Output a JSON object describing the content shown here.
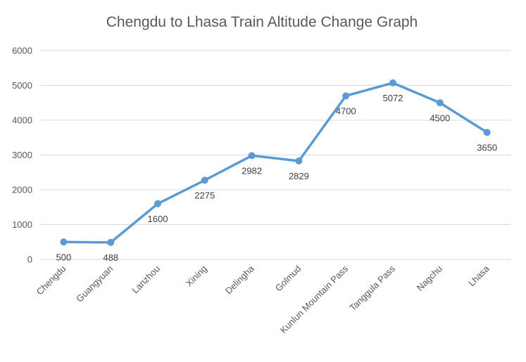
{
  "chart_data": {
    "type": "line",
    "title": "Chengdu to Lhasa Train Altitude Change Graph",
    "xlabel": "",
    "ylabel": "",
    "categories": [
      "Chengdu",
      "Guangyuan",
      "Lanzhou",
      "Xining",
      "Delingha",
      "Golmud",
      "Kunlun Mountain Pass",
      "Tanggula Pass",
      "Nagchu",
      "Lhasa"
    ],
    "series": [
      {
        "values": [
          500,
          488,
          1600,
          2275,
          2982,
          2829,
          4700,
          5072,
          4500,
          3650
        ],
        "data_labels": [
          "500",
          "488",
          "1600",
          "2275",
          "2982",
          "2829",
          "4700",
          "5072",
          "4500",
          "3650"
        ]
      }
    ],
    "ylim": [
      0,
      6000
    ],
    "yticks": [
      0,
      1000,
      2000,
      3000,
      4000,
      5000,
      6000
    ],
    "ytick_labels": [
      "0",
      "1000",
      "2000",
      "3000",
      "4000",
      "5000",
      "6000"
    ],
    "grid": true,
    "legend": "none",
    "colors": {
      "line": "#5b9bd5",
      "grid": "#d9d9d9",
      "text": "#595959"
    }
  }
}
